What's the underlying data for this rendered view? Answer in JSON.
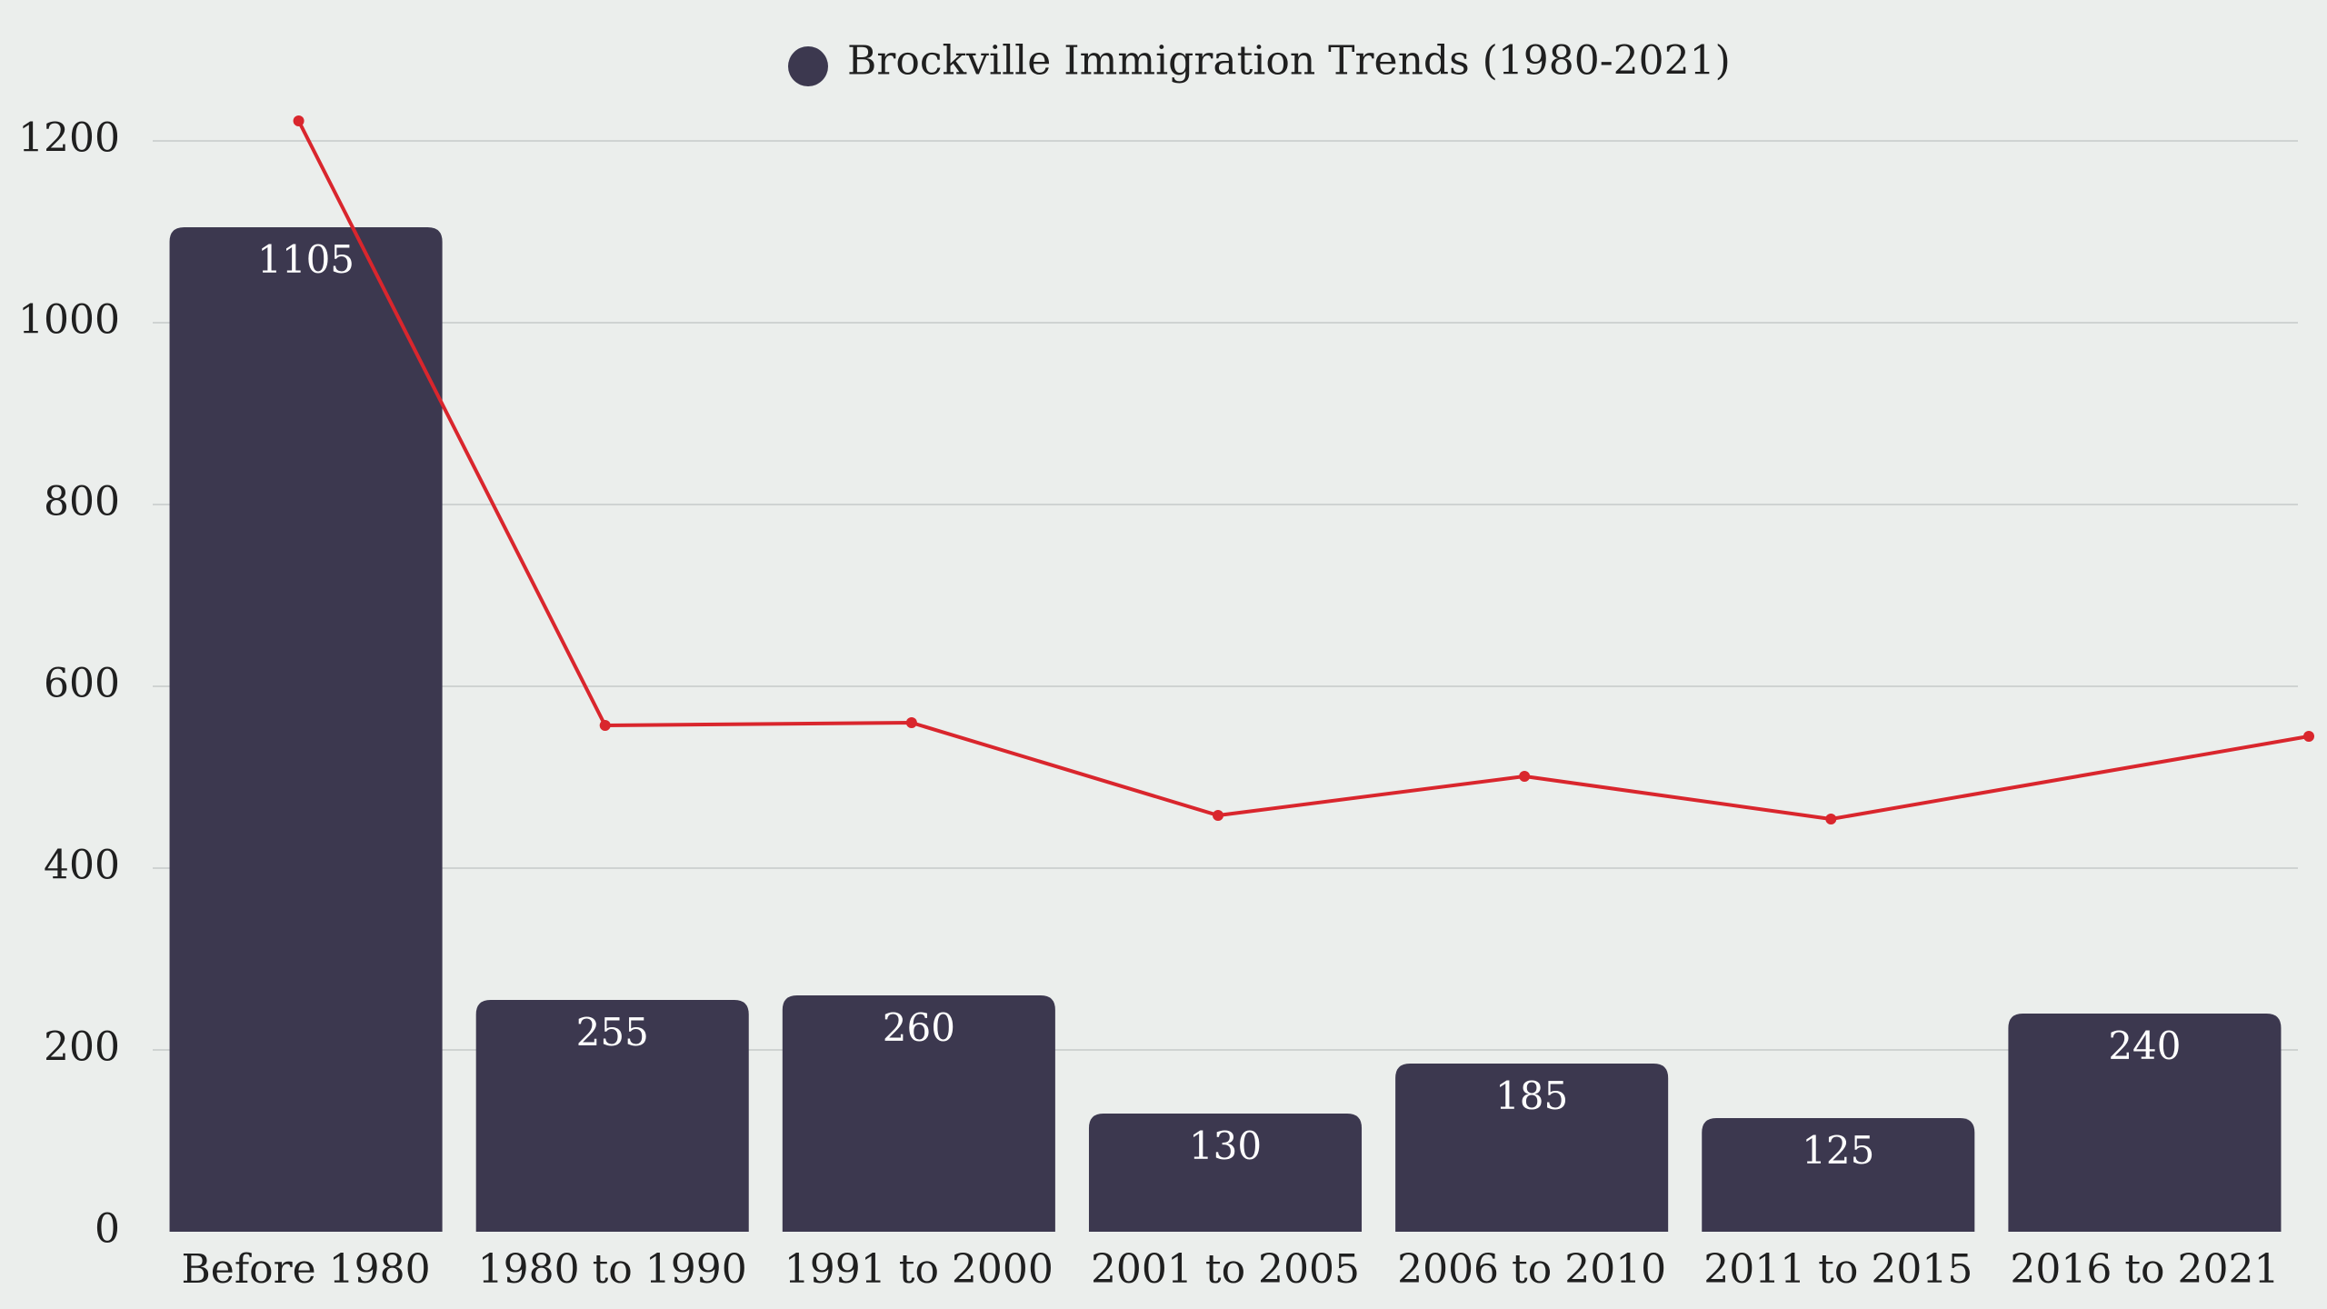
{
  "chart_data": {
    "type": "bar",
    "title": "",
    "xlabel": "",
    "ylabel": "",
    "ylim": [
      0,
      1200
    ],
    "yticks": [
      0,
      200,
      400,
      600,
      800,
      1000,
      1200
    ],
    "grid": true,
    "legend": {
      "placement": "top-center",
      "label": "Brockville Immigration Trends (1980-2021)"
    },
    "categories": [
      "Before 1980",
      "1980 to 1990",
      "1991 to 2000",
      "2001 to 2005",
      "2006 to 2010",
      "2011 to 2015",
      "2016 to 2021"
    ],
    "series": [
      {
        "name": "Brockville Immigration Trends (1980-2021)",
        "type": "bar",
        "color": "#3c384f",
        "values": [
          1105,
          255,
          260,
          130,
          185,
          125,
          240
        ]
      },
      {
        "type": "line",
        "color": "#d9262d",
        "values": [
          1222,
          557,
          560,
          458,
          501,
          454,
          545
        ]
      }
    ]
  }
}
